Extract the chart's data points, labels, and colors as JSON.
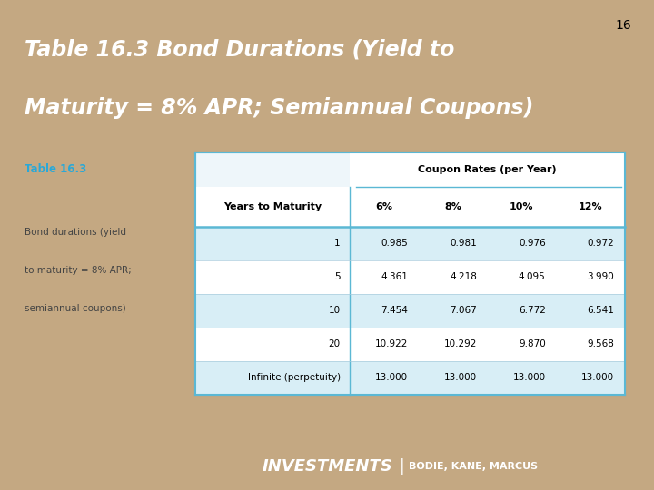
{
  "slide_number": "16",
  "title_line1": "Table 16.3 Bond Durations (Yield to",
  "title_line2": "Maturity = 8% APR; Semiannual Coupons)",
  "title_bg_color": "#1B2A6B",
  "title_text_color": "#FFFFFF",
  "slide_bg_color": "#C4A882",
  "table_title": "Table 16.3",
  "table_title_color": "#29A8D8",
  "table_desc_line1": "Bond durations (yield",
  "table_desc_line2": "to maturity = 8% APR;",
  "table_desc_line3": "semiannual coupons)",
  "table_desc_color": "#444444",
  "coupon_header": "Coupon Rates (per Year)",
  "col_headers": [
    "Years to Maturity",
    "6%",
    "8%",
    "10%",
    "12%"
  ],
  "rows": [
    [
      "1",
      "0.985",
      "0.981",
      "0.976",
      "0.972"
    ],
    [
      "5",
      "4.361",
      "4.218",
      "4.095",
      "3.990"
    ],
    [
      "10",
      "7.454",
      "7.067",
      "6.772",
      "6.541"
    ],
    [
      "20",
      "10.922",
      "10.292",
      "9.870",
      "9.568"
    ],
    [
      "Infinite (perpetuity)",
      "13.000",
      "13.000",
      "13.000",
      "13.000"
    ]
  ],
  "table_bg_color": "#EEF6FA",
  "table_border_color": "#5BB8D4",
  "alt_row_color": "#D8EEF6",
  "footer_bg_color": "#1B2A6B",
  "footer_text": "INVESTMENTS",
  "footer_subtext": "BODIE, KANE, MARCUS",
  "footer_separator": "|",
  "footer_text_color": "#FFFFFF",
  "card_bg": "#F0F0F0",
  "card_shadow": "#BBBBBB"
}
